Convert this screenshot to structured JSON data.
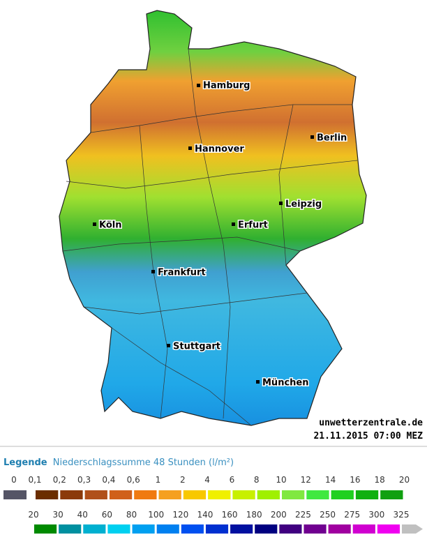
{
  "map": {
    "cities": [
      "Hamburg",
      "Hannover",
      "Berlin",
      "Köln",
      "Erfurt",
      "Leipzig",
      "Frankfurt",
      "Stuttgart",
      "München"
    ],
    "source": "unwetterzentrale.de",
    "timestamp": "21.11.2015 07:00 MEZ"
  },
  "legend": {
    "title": "Legende",
    "subtitle": "Niederschlagssumme 48 Stunden  (l/m²)",
    "row1": {
      "labels": [
        "0",
        "0,1",
        "0,2",
        "0,3",
        "0,4",
        "0,6",
        "1",
        "2",
        "4",
        "6",
        "8",
        "10",
        "12",
        "14",
        "16",
        "18",
        "20"
      ],
      "colors": [
        "#555566",
        "#6b2e00",
        "#8b3a0a",
        "#b0501a",
        "#d0601a",
        "#f07a10",
        "#f5a020",
        "#f8c800",
        "#f0f000",
        "#c8f000",
        "#a0f000",
        "#80e840",
        "#40e840",
        "#20d020",
        "#10b010",
        "#10a010"
      ]
    },
    "row2": {
      "labels": [
        "20",
        "30",
        "40",
        "60",
        "80",
        "100",
        "120",
        "140",
        "160",
        "180",
        "200",
        "225",
        "250",
        "275",
        "300",
        "325"
      ],
      "colors": [
        "#008a00",
        "#0090a0",
        "#00b0d0",
        "#00d0f0",
        "#00a0f0",
        "#0080f0",
        "#0050f0",
        "#0030d0",
        "#0010a0",
        "#000080",
        "#400080",
        "#700090",
        "#a000a0",
        "#d000d0",
        "#f000f0",
        "#c0c0c0"
      ]
    }
  }
}
